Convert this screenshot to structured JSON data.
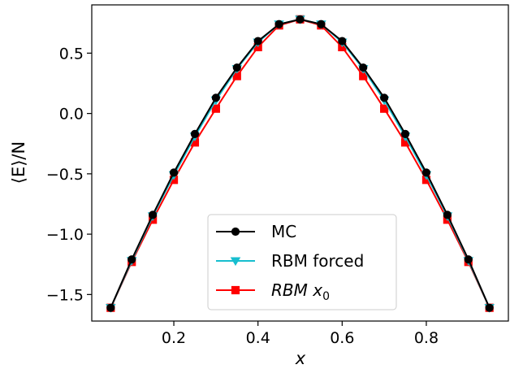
{
  "chart_data": {
    "type": "line",
    "xlabel": "x",
    "ylabel": "⟨E⟩/N",
    "xlim": [
      0.005,
      0.995
    ],
    "ylim": [
      -1.72,
      0.9
    ],
    "xticks": [
      0.2,
      0.4,
      0.6,
      0.8
    ],
    "xtick_labels": [
      "0.2",
      "0.4",
      "0.6",
      "0.8"
    ],
    "yticks": [
      0.5,
      0.0,
      -0.5,
      -1.0,
      -1.5
    ],
    "ytick_labels": [
      "0.5",
      "0.0",
      "−0.5",
      "−1.0",
      "−1.5"
    ],
    "legend_position": "bottom-center",
    "x": [
      0.05,
      0.1,
      0.15,
      0.2,
      0.25,
      0.3,
      0.35,
      0.4,
      0.45,
      0.5,
      0.55,
      0.6,
      0.65,
      0.7,
      0.75,
      0.8,
      0.85,
      0.9,
      0.95
    ],
    "series": [
      {
        "name": "MC",
        "label_main": "MC",
        "label_sub": "",
        "color": "#000000",
        "marker": "circle",
        "values": [
          -1.61,
          -1.21,
          -0.84,
          -0.49,
          -0.17,
          0.13,
          0.38,
          0.6,
          0.74,
          0.78,
          0.74,
          0.6,
          0.38,
          0.13,
          -0.17,
          -0.49,
          -0.84,
          -1.21,
          -1.61
        ]
      },
      {
        "name": "RBM forced",
        "label_main": "RBM forced",
        "label_sub": "",
        "color": "#17becf",
        "marker": "triangle-down",
        "values": [
          -1.61,
          -1.22,
          -0.85,
          -0.51,
          -0.19,
          0.11,
          0.37,
          0.59,
          0.74,
          0.78,
          0.74,
          0.59,
          0.37,
          0.11,
          -0.19,
          -0.51,
          -0.85,
          -1.22,
          -1.61
        ]
      },
      {
        "name": "RBM x0",
        "label_main": "RBM x",
        "label_sub": "0",
        "color": "#ff0000",
        "marker": "square",
        "values": [
          -1.61,
          -1.23,
          -0.88,
          -0.55,
          -0.24,
          0.04,
          0.31,
          0.55,
          0.73,
          0.78,
          0.73,
          0.55,
          0.31,
          0.04,
          -0.24,
          -0.55,
          -0.88,
          -1.23,
          -1.61
        ]
      }
    ]
  }
}
